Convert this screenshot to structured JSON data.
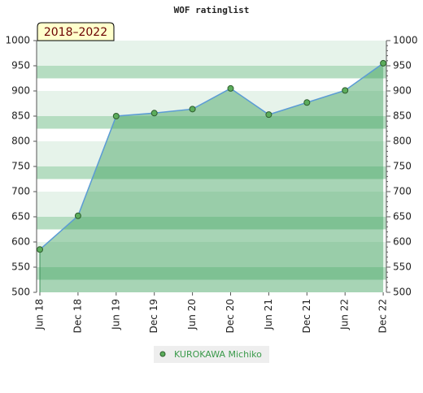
{
  "chart_data": {
    "type": "line",
    "title": "WOF ratinglist",
    "annotation": "2018–2022",
    "categories": [
      "Jun 18",
      "Dec 18",
      "Jun 19",
      "Dec 19",
      "Jun 20",
      "Dec 20",
      "Jun 21",
      "Dec 21",
      "Jun 22",
      "Dec 22"
    ],
    "series": [
      {
        "name": "KUROKAWA Michiko",
        "color": "#5b9bd5",
        "marker_color": "#5cad5c",
        "values": [
          585,
          652,
          850,
          856,
          864,
          905,
          853,
          877,
          901,
          955
        ]
      }
    ],
    "ylim": [
      500,
      1000
    ],
    "yticks": [
      500,
      550,
      600,
      650,
      700,
      750,
      800,
      850,
      900,
      950,
      1000
    ],
    "y2lim": [
      500,
      1000
    ],
    "y2ticks": [
      500,
      550,
      600,
      650,
      700,
      750,
      800,
      850,
      900,
      950,
      1000
    ]
  }
}
